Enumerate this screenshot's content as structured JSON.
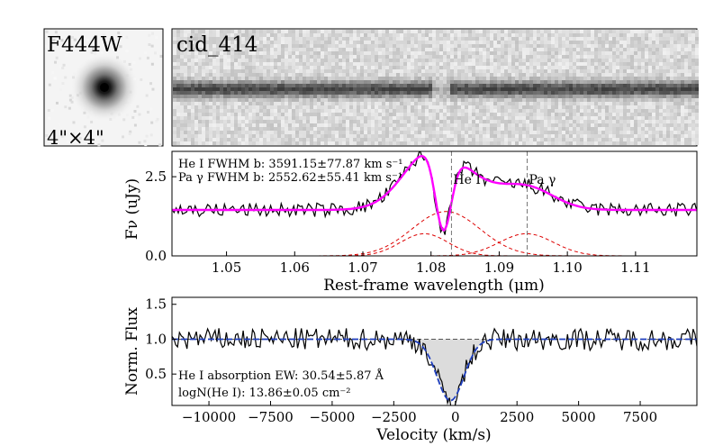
{
  "thumbnail": {
    "filter_label": "F444W",
    "size_label": "4\"×4\""
  },
  "spectrum2d": {
    "object_label": "cid_414"
  },
  "chart_data": [
    {
      "type": "line",
      "panel": "flux_vs_wavelength",
      "xlabel": "Rest-frame wavelength (μm)",
      "ylabel": "Fν (uJy)",
      "xlim": [
        1.042,
        1.119
      ],
      "ylim": [
        0.0,
        3.3
      ],
      "xticks": [
        "1.05",
        "1.06",
        "1.07",
        "1.08",
        "1.09",
        "1.10",
        "1.11"
      ],
      "yticks": [
        "0.0",
        "2.5"
      ],
      "line_markers": [
        {
          "label": "He I",
          "x": 1.083
        },
        {
          "label": "Pa γ",
          "x": 1.0941
        }
      ],
      "annotations": [
        "He I FWHM b:  3591.15±77.87 km s⁻¹",
        "Pa γ FWHM b:  2552.62±55.41 km s⁻¹"
      ],
      "continuum": 1.45,
      "series": [
        {
          "name": "data",
          "color": "#000000"
        },
        {
          "name": "model",
          "color": "#ff00ff"
        },
        {
          "name": "components",
          "color": "#dd0000",
          "gaussians": [
            {
              "center": 1.079,
              "sigma": 0.0035,
              "amp": 0.7
            },
            {
              "center": 1.0822,
              "sigma": 0.005,
              "amp": 1.4
            },
            {
              "center": 1.094,
              "sigma": 0.004,
              "amp": 0.7
            }
          ]
        },
        {
          "name": "absorption",
          "center": 1.0818,
          "sigma": 0.0012,
          "depth": 0.85
        }
      ]
    },
    {
      "type": "line",
      "panel": "normalized_flux_vs_velocity",
      "xlabel": "Velocity (km/s)",
      "ylabel": "Norm. Flux",
      "xlim": [
        -11500,
        9800
      ],
      "ylim": [
        0.05,
        1.6
      ],
      "xticks": [
        "−10000",
        "−7500",
        "−5000",
        "−2500",
        "0",
        "2500",
        "5000",
        "7500"
      ],
      "xtick_values": [
        -10000,
        -7500,
        -5000,
        -2500,
        0,
        2500,
        5000,
        7500
      ],
      "yticks": [
        "0.5",
        "1.0",
        "1.5"
      ],
      "ytick_values": [
        0.5,
        1.0,
        1.5
      ],
      "reference_level": 1.0,
      "absorption": {
        "center": -200,
        "sigma": 550,
        "depth": 0.88
      },
      "annotations": [
        "He I absorption EW:  30.54±5.87 Å",
        "logN(He I):  13.86±0.05 cm⁻²"
      ],
      "series": [
        {
          "name": "data",
          "color": "#000000"
        },
        {
          "name": "model",
          "color": "#1f3fbf"
        }
      ]
    }
  ]
}
